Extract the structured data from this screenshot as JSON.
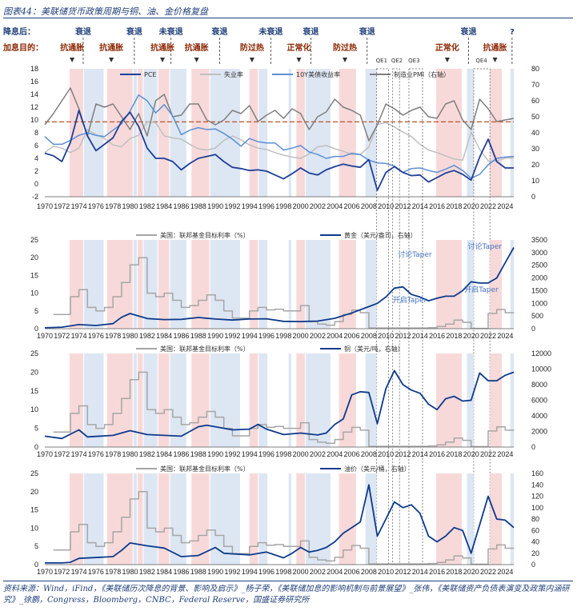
{
  "figure_title": "图表44：美联储货币政策周期与铜、油、金价格复盘",
  "source": "资料来源：Wind，iFind，《美联储历次降息的背景、影响及启示》_杨子荣，《美联储加息的影响机制与前景展望》_张伟，《美联储资产负债表演变及政策内涵研究》_徐鹏，Congress，Bloomberg，CNBC，Federal Reserve，国盛证券研究所",
  "colors": {
    "fed": "#a6a6a6",
    "pce": "#1f3f99",
    "unemp": "#bfbfbf",
    "ty10": "#5b8fd6",
    "pmi": "#7f7f7f",
    "gold": "#0d3a8c",
    "band_red": "#f8d9d9",
    "band_blue": "#dde6f3",
    "dash_red": "#c0502a"
  },
  "annotations": {
    "cut_label": "降息后：",
    "hike_label": "加息目的：",
    "cut_events": [
      {
        "label": "衰退",
        "year": 1974.5
      },
      {
        "label": "衰退",
        "year": 1980.5
      },
      {
        "label": "未衰退",
        "year": 1984.8
      },
      {
        "label": "衰退",
        "year": 1990.5
      },
      {
        "label": "未衰退",
        "year": 1996.5
      },
      {
        "label": "衰退",
        "year": 2001.2
      },
      {
        "label": "衰退",
        "year": 2007.8
      },
      {
        "label": "衰退",
        "year": 2019.7
      },
      {
        "label": "?",
        "year": 2024.8
      }
    ],
    "hike_events": [
      {
        "label": "抗通胀",
        "year": 1973.2
      },
      {
        "label": "抗通胀",
        "year": 1977.8
      },
      {
        "label": "抗通胀",
        "year": 1983.8
      },
      {
        "label": "抗通胀",
        "year": 1987.8
      },
      {
        "label": "防过热",
        "year": 1994.3
      },
      {
        "label": "正常化",
        "year": 1999.8
      },
      {
        "label": "防过热",
        "year": 2005.2
      },
      {
        "label": "正常化",
        "year": 2017.2
      },
      {
        "label": "抗通胀",
        "year": 2022.8
      }
    ],
    "qe_labels": [
      {
        "label": "QE1",
        "year": 2009.5
      },
      {
        "label": "QE2",
        "year": 2011.3
      },
      {
        "label": "QE3",
        "year": 2013.3
      },
      {
        "label": "QE4",
        "year": 2021.2
      }
    ],
    "gold_taper_talk": "讨论Taper",
    "gold_taper_start": "开启Taper"
  },
  "chart_data": [
    {
      "type": "line",
      "title": "PCE / 失业率 / 10Y美债收益率 / 制造业PMI",
      "legend": [
        "PCE",
        "失业率",
        "10Y美债收益率",
        "制造业PMI（右轴）"
      ],
      "x_ticks": [
        "1970",
        "1972",
        "1974",
        "1976",
        "1978",
        "1980",
        "1982",
        "1984",
        "1986",
        "1988",
        "1990",
        "1992",
        "1994",
        "1996",
        "1998",
        "2000",
        "2002",
        "2004",
        "2006",
        "2008",
        "2010",
        "2012",
        "2014",
        "2016",
        "2018",
        "2020",
        "2022",
        "2024"
      ],
      "y_left_ticks": [
        "-2",
        "0",
        "2",
        "4",
        "6",
        "8",
        "10",
        "12",
        "14",
        "16",
        "18"
      ],
      "y_right_ticks": [
        "0",
        "10",
        "20",
        "30",
        "40",
        "50",
        "60",
        "70",
        "80"
      ],
      "ylim_left": [
        -2,
        18
      ],
      "ylim_right": [
        0,
        80
      ],
      "reference_line": {
        "axis": "left",
        "value": 9.7
      },
      "series": [
        {
          "name": "PCE",
          "axis": "left",
          "x": [
            1970,
            1971,
            1972,
            1973,
            1974,
            1975,
            1976,
            1977,
            1978,
            1979,
            1980,
            1981,
            1982,
            1983,
            1984,
            1985,
            1986,
            1987,
            1988,
            1989,
            1990,
            1991,
            1992,
            1993,
            1994,
            1995,
            1996,
            1997,
            1998,
            1999,
            2000,
            2001,
            2002,
            2003,
            2004,
            2005,
            2006,
            2007,
            2008,
            2009,
            2010,
            2011,
            2012,
            2013,
            2014,
            2015,
            2016,
            2017,
            2018,
            2019,
            2020,
            2021,
            2022,
            2023,
            2024,
            2025
          ],
          "y": [
            4.8,
            4.4,
            3.5,
            6.5,
            11.5,
            7.5,
            5.2,
            6.2,
            7.2,
            9.8,
            11.2,
            9.0,
            5.6,
            4.0,
            4.0,
            3.5,
            2.2,
            3.2,
            4.0,
            4.3,
            4.6,
            3.5,
            2.6,
            2.4,
            2.1,
            2.2,
            2.0,
            1.4,
            0.8,
            1.6,
            2.5,
            1.7,
            1.4,
            2.2,
            2.7,
            3.1,
            2.8,
            2.6,
            3.8,
            -1.0,
            1.8,
            2.7,
            1.8,
            1.3,
            1.4,
            0.3,
            1.0,
            1.7,
            2.1,
            1.5,
            0.6,
            4.2,
            7.0,
            3.5,
            2.5,
            2.5
          ]
        },
        {
          "name": "失业率",
          "axis": "left",
          "x": [
            1970,
            1971,
            1972,
            1973,
            1974,
            1975,
            1976,
            1977,
            1978,
            1979,
            1980,
            1981,
            1982,
            1983,
            1984,
            1985,
            1986,
            1987,
            1988,
            1989,
            1990,
            1991,
            1992,
            1993,
            1994,
            1995,
            1996,
            1997,
            1998,
            1999,
            2000,
            2001,
            2002,
            2003,
            2004,
            2005,
            2006,
            2007,
            2008,
            2009,
            2010,
            2011,
            2012,
            2013,
            2014,
            2015,
            2016,
            2017,
            2018,
            2019,
            2020,
            2021,
            2022,
            2023,
            2024,
            2025
          ],
          "y": [
            4.9,
            5.9,
            5.6,
            4.9,
            5.6,
            8.5,
            7.7,
            7.1,
            6.1,
            5.8,
            7.1,
            7.6,
            9.7,
            9.6,
            7.5,
            7.2,
            7.0,
            6.2,
            5.5,
            5.3,
            5.6,
            6.8,
            7.5,
            6.9,
            6.1,
            5.6,
            5.4,
            4.9,
            4.5,
            4.2,
            4.0,
            4.7,
            5.8,
            6.0,
            5.5,
            5.1,
            4.6,
            4.6,
            5.8,
            9.3,
            9.6,
            8.9,
            8.1,
            7.4,
            6.2,
            5.3,
            4.9,
            4.4,
            3.9,
            3.7,
            8.1,
            5.4,
            3.6,
            3.6,
            4.0,
            4.1
          ]
        },
        {
          "name": "10Y美债收益率",
          "axis": "left",
          "x": [
            1970,
            1971,
            1972,
            1973,
            1974,
            1975,
            1976,
            1977,
            1978,
            1979,
            1980,
            1981,
            1982,
            1983,
            1984,
            1985,
            1986,
            1987,
            1988,
            1989,
            1990,
            1991,
            1992,
            1993,
            1994,
            1995,
            1996,
            1997,
            1998,
            1999,
            2000,
            2001,
            2002,
            2003,
            2004,
            2005,
            2006,
            2007,
            2008,
            2009,
            2010,
            2011,
            2012,
            2013,
            2014,
            2015,
            2016,
            2017,
            2018,
            2019,
            2020,
            2021,
            2022,
            2023,
            2024,
            2025
          ],
          "y": [
            7.4,
            6.2,
            6.2,
            6.8,
            7.6,
            8.0,
            7.6,
            7.4,
            8.4,
            9.4,
            11.4,
            13.9,
            13.0,
            11.1,
            12.4,
            10.6,
            7.7,
            8.4,
            8.8,
            8.5,
            8.6,
            7.9,
            7.0,
            5.9,
            7.1,
            6.6,
            6.4,
            6.4,
            5.3,
            5.6,
            6.0,
            5.0,
            4.6,
            4.0,
            4.3,
            4.3,
            4.8,
            4.6,
            3.7,
            3.3,
            3.2,
            2.8,
            1.8,
            2.4,
            2.5,
            2.1,
            1.8,
            2.3,
            2.9,
            2.1,
            0.9,
            1.5,
            3.0,
            4.0,
            4.2,
            4.3
          ]
        },
        {
          "name": "制造业PMI（右轴）",
          "axis": "right",
          "x": [
            1970,
            1971,
            1972,
            1973,
            1974,
            1975,
            1976,
            1977,
            1978,
            1979,
            1980,
            1981,
            1982,
            1983,
            1984,
            1985,
            1986,
            1987,
            1988,
            1989,
            1990,
            1991,
            1992,
            1993,
            1994,
            1995,
            1996,
            1997,
            1998,
            1999,
            2000,
            2001,
            2002,
            2003,
            2004,
            2005,
            2006,
            2007,
            2008,
            2009,
            2010,
            2011,
            2012,
            2013,
            2014,
            2015,
            2016,
            2017,
            2018,
            2019,
            2020,
            2021,
            2022,
            2023,
            2024,
            2025
          ],
          "y": [
            45,
            52,
            60,
            68,
            55,
            38,
            58,
            56,
            58,
            50,
            42,
            52,
            38,
            60,
            64,
            50,
            51,
            58,
            58,
            48,
            45,
            48,
            54,
            52,
            57,
            47,
            51,
            54,
            49,
            55,
            52,
            42,
            50,
            53,
            61,
            56,
            54,
            51,
            35,
            45,
            58,
            55,
            51,
            54,
            56,
            50,
            49,
            58,
            60,
            48,
            42,
            61,
            55,
            47,
            48,
            49
          ]
        }
      ]
    },
    {
      "type": "line",
      "title": "美国联邦基金目标利率 vs 黄金",
      "legend": [
        "美国：联邦基金目标利率（%）",
        "黄金（美元/盎司，右轴）"
      ],
      "y_left_ticks": [
        "0",
        "5",
        "10",
        "15",
        "20",
        "25"
      ],
      "y_right_ticks": [
        "0",
        "500",
        "1000",
        "1500",
        "2000",
        "2500",
        "3000",
        "3500"
      ],
      "ylim_left": [
        0,
        25
      ],
      "ylim_right": [
        0,
        3500
      ],
      "series": [
        {
          "name": "美国：联邦基金目标利率（%）",
          "axis": "left",
          "x": [
            1971,
            1972,
            1973,
            1974,
            1975,
            1976,
            1977,
            1978,
            1979,
            1980,
            1981,
            1982,
            1983,
            1984,
            1985,
            1986,
            1987,
            1988,
            1989,
            1990,
            1991,
            1992,
            1993,
            1994,
            1995,
            1996,
            1997,
            1998,
            1999,
            2000,
            2001,
            2002,
            2003,
            2004,
            2005,
            2006,
            2007,
            2008,
            2009,
            2010,
            2011,
            2012,
            2013,
            2014,
            2015,
            2016,
            2017,
            2018,
            2019,
            2020,
            2021,
            2022,
            2023,
            2024,
            2025
          ],
          "y": [
            4,
            4,
            9,
            11,
            6,
            5,
            6,
            9,
            13,
            18,
            20,
            10,
            9,
            10,
            8,
            6,
            6.5,
            8,
            9.5,
            8,
            5,
            3,
            3,
            5,
            6,
            5.3,
            5.5,
            5,
            5,
            6.5,
            2,
            1.3,
            1,
            2,
            4,
            5.25,
            4.5,
            0.2,
            0.2,
            0.2,
            0.2,
            0.2,
            0.2,
            0.2,
            0.3,
            0.6,
            1.3,
            2.4,
            1.8,
            0.1,
            0.1,
            4.3,
            5.4,
            4.5,
            4.4
          ]
        },
        {
          "name": "黄金（美元/盎司，右轴）",
          "axis": "right",
          "x": [
            1970,
            1972,
            1974,
            1976,
            1978,
            1979,
            1980,
            1982,
            1984,
            1986,
            1988,
            1990,
            1992,
            1994,
            1996,
            1998,
            2000,
            2002,
            2004,
            2006,
            2008,
            2009,
            2010,
            2011,
            2012,
            2013,
            2014,
            2015,
            2016,
            2017,
            2018,
            2019,
            2020,
            2021,
            2022,
            2023,
            2024,
            2025
          ],
          "y": [
            35,
            60,
            160,
            125,
            200,
            450,
            600,
            400,
            360,
            370,
            440,
            380,
            340,
            380,
            390,
            290,
            280,
            300,
            410,
            620,
            870,
            1000,
            1250,
            1600,
            1650,
            1350,
            1250,
            1100,
            1200,
            1280,
            1280,
            1500,
            1850,
            1800,
            1800,
            2000,
            2600,
            3200
          ]
        }
      ]
    },
    {
      "type": "line",
      "title": "美国联邦基金目标利率 vs 铜",
      "legend": [
        "美国：联邦基金目标利率（%）",
        "铜（美元/吨，右轴）"
      ],
      "y_left_ticks": [
        "0",
        "5",
        "10",
        "15",
        "20",
        "25"
      ],
      "y_right_ticks": [
        "0",
        "2000",
        "4000",
        "6000",
        "8000",
        "10000",
        "12000"
      ],
      "ylim_left": [
        0,
        25
      ],
      "ylim_right": [
        0,
        12000
      ],
      "series": [
        {
          "name": "铜（美元/吨，右轴）",
          "axis": "right",
          "x": [
            1970,
            1972,
            1974,
            1975,
            1978,
            1980,
            1982,
            1984,
            1986,
            1988,
            1989,
            1990,
            1992,
            1994,
            1995,
            1996,
            1998,
            2000,
            2002,
            2003,
            2004,
            2005,
            2006,
            2007,
            2008,
            2009,
            2010,
            2011,
            2012,
            2013,
            2014,
            2015,
            2016,
            2017,
            2018,
            2019,
            2020,
            2021,
            2022,
            2023,
            2024,
            2025
          ],
          "y": [
            1400,
            1100,
            2200,
            1300,
            1500,
            2100,
            1600,
            1500,
            1400,
            2600,
            2800,
            2600,
            2200,
            2300,
            2900,
            2300,
            1600,
            1800,
            1550,
            1800,
            2900,
            3600,
            6700,
            7100,
            7000,
            3000,
            7500,
            9800,
            8000,
            7300,
            6900,
            5500,
            4800,
            6200,
            6500,
            5900,
            6000,
            9500,
            8500,
            8500,
            9200,
            9600
          ]
        }
      ]
    },
    {
      "type": "line",
      "title": "美国联邦基金目标利率 vs 油价",
      "legend": [
        "美国：联邦基金目标利率（%）",
        "油价（美元/桶，右轴）"
      ],
      "y_left_ticks": [
        "0",
        "5",
        "10",
        "15",
        "20",
        "25"
      ],
      "y_right_ticks": [
        "0",
        "20",
        "40",
        "60",
        "80",
        "100",
        "120",
        "140",
        "160"
      ],
      "ylim_left": [
        0,
        25
      ],
      "ylim_right": [
        0,
        160
      ],
      "series": [
        {
          "name": "油价（美元/桶，右轴）",
          "axis": "right",
          "x": [
            1970,
            1972,
            1973,
            1974,
            1978,
            1979,
            1980,
            1982,
            1984,
            1986,
            1988,
            1990,
            1991,
            1994,
            1996,
            1998,
            1999,
            2000,
            2001,
            2002,
            2003,
            2004,
            2005,
            2006,
            2007,
            2008,
            2009,
            2010,
            2011,
            2012,
            2013,
            2014,
            2015,
            2016,
            2017,
            2018,
            2019,
            2020,
            2021,
            2022,
            2023,
            2024,
            2025
          ],
          "y": [
            3,
            3,
            4,
            11,
            14,
            25,
            38,
            33,
            29,
            14,
            16,
            30,
            20,
            17,
            22,
            12,
            20,
            30,
            22,
            25,
            30,
            40,
            55,
            65,
            75,
            140,
            50,
            80,
            110,
            100,
            105,
            90,
            50,
            40,
            50,
            65,
            60,
            20,
            70,
            120,
            80,
            78,
            65
          ]
        }
      ]
    }
  ]
}
